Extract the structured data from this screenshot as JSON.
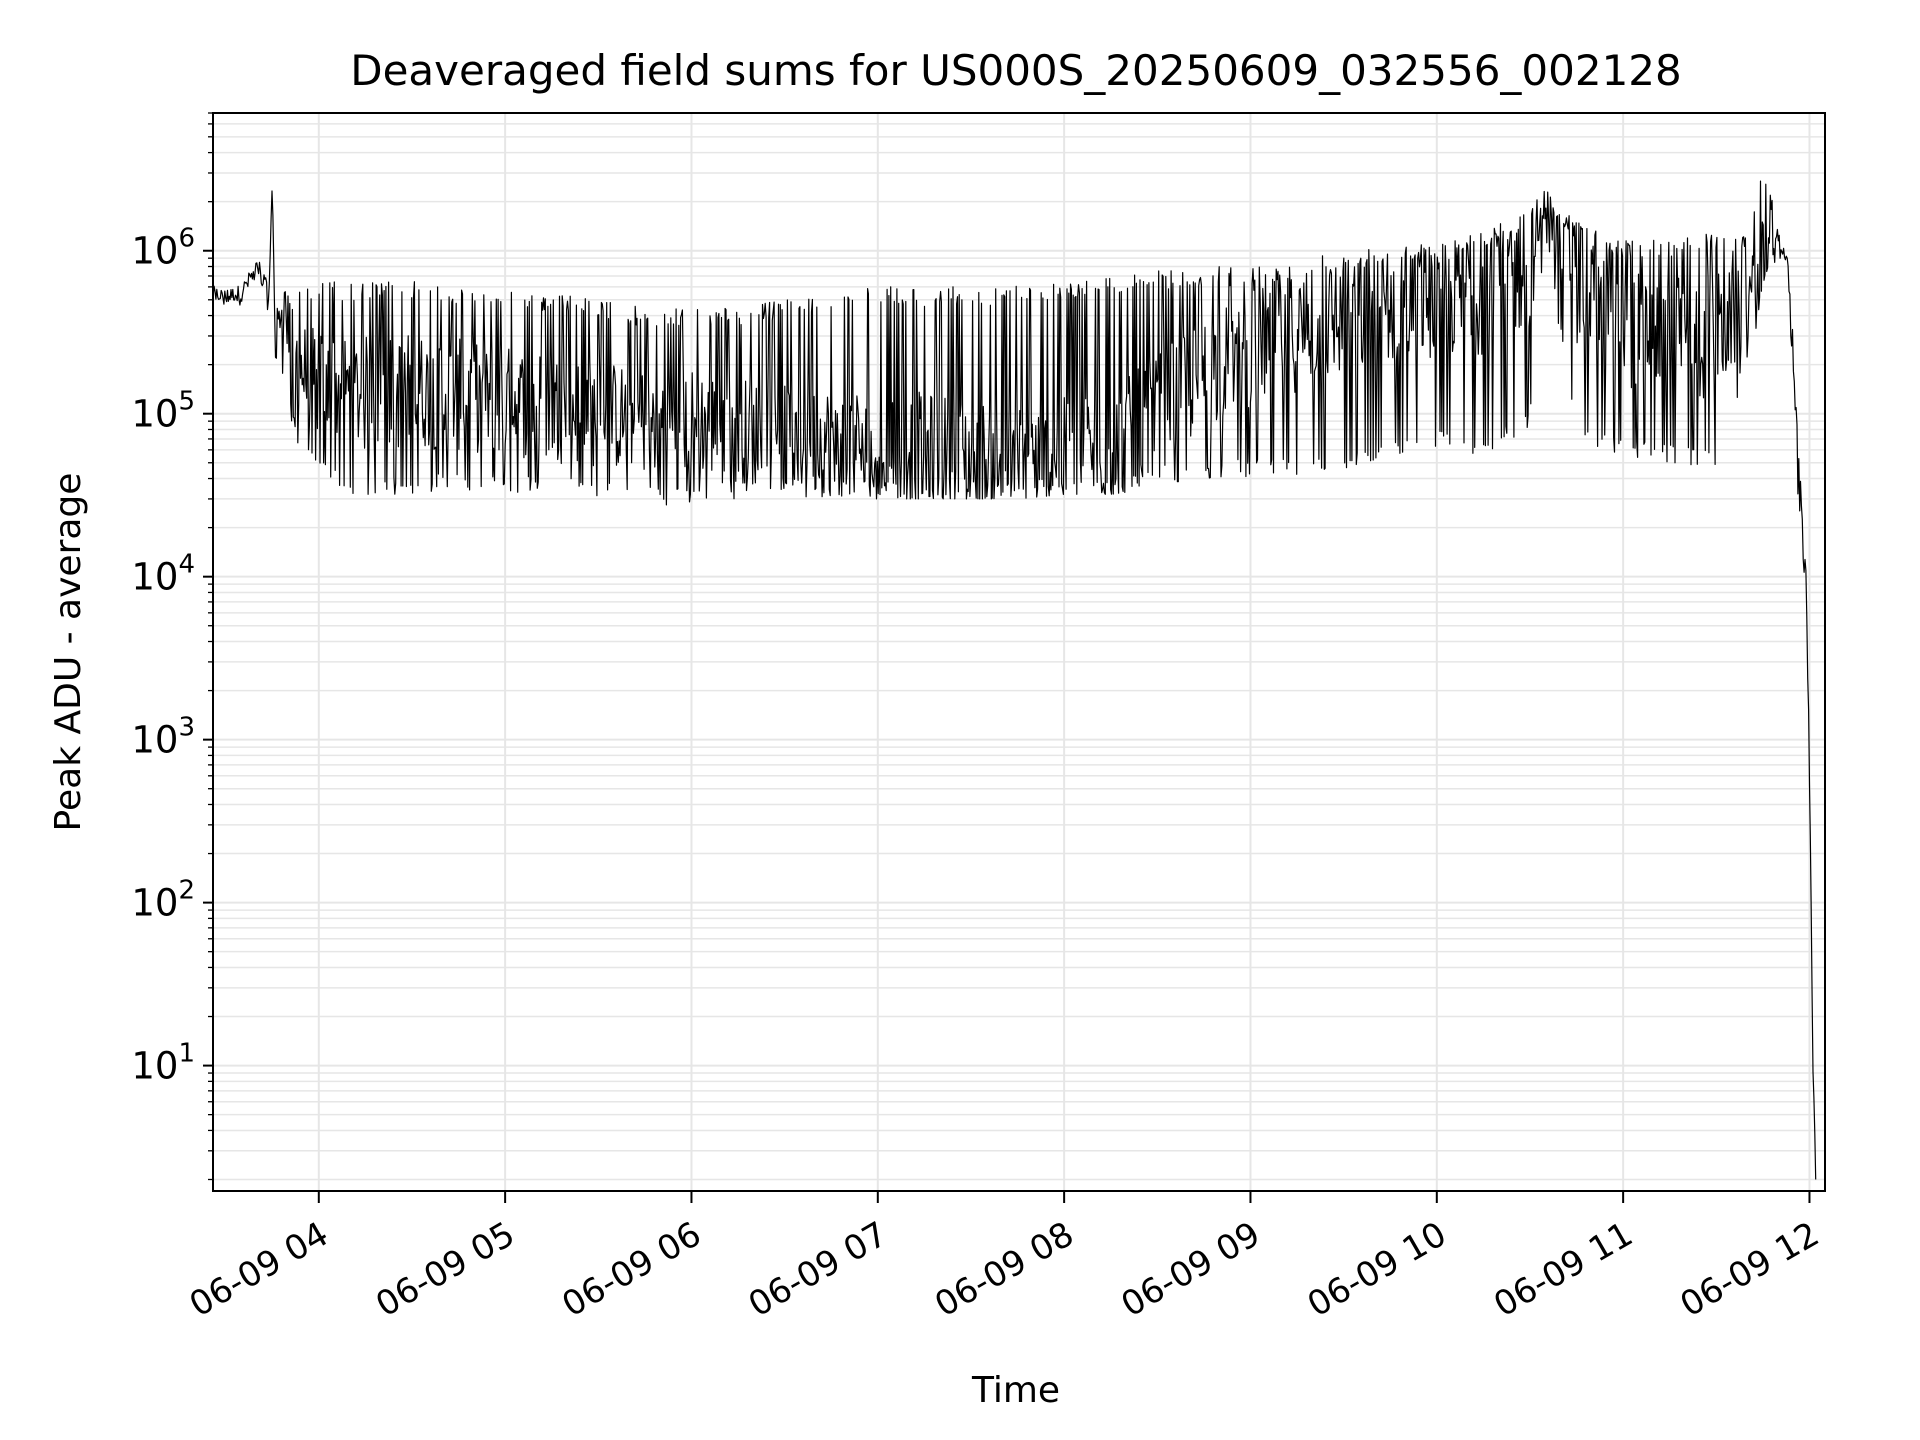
{
  "chart_data": {
    "type": "line",
    "title": "Deaveraged field sums for US000S_20250609_032556_002128",
    "xlabel": "Time",
    "ylabel": "Peak ADU - average",
    "yscale": "log",
    "ylim": [
      1.7,
      7000000
    ],
    "xlim": [
      "2025-06-09 03:25:56",
      "2025-06-09 12:05:00"
    ],
    "grid": true,
    "line_color": "#000000",
    "y_ticks": [
      {
        "base": "10",
        "exp": "1"
      },
      {
        "base": "10",
        "exp": "2"
      },
      {
        "base": "10",
        "exp": "3"
      },
      {
        "base": "10",
        "exp": "4"
      },
      {
        "base": "10",
        "exp": "5"
      },
      {
        "base": "10",
        "exp": "6"
      }
    ],
    "x_ticks": [
      "06-09 04",
      "06-09 05",
      "06-09 06",
      "06-09 07",
      "06-09 08",
      "06-09 09",
      "06-09 10",
      "06-09 11",
      "06-09 12"
    ],
    "x_tick_times": [
      "2025-06-09 04:00",
      "2025-06-09 05:00",
      "2025-06-09 06:00",
      "2025-06-09 07:00",
      "2025-06-09 08:00",
      "2025-06-09 09:00",
      "2025-06-09 10:00",
      "2025-06-09 11:00",
      "2025-06-09 12:00"
    ],
    "series": [
      {
        "x": [
          "2025-06-09 03:26",
          "2025-06-09 03:30",
          "2025-06-09 03:35",
          "2025-06-09 03:40",
          "2025-06-09 03:44",
          "2025-06-09 03:45",
          "2025-06-09 03:46",
          "2025-06-09 03:48",
          "2025-06-09 03:50",
          "2025-06-09 03:55",
          "2025-06-09 04:00",
          "2025-06-09 04:15",
          "2025-06-09 04:30",
          "2025-06-09 04:45",
          "2025-06-09 05:00",
          "2025-06-09 05:15",
          "2025-06-09 05:30",
          "2025-06-09 05:45",
          "2025-06-09 06:00",
          "2025-06-09 06:15",
          "2025-06-09 06:30",
          "2025-06-09 06:45",
          "2025-06-09 07:00",
          "2025-06-09 07:15",
          "2025-06-09 07:30",
          "2025-06-09 07:45",
          "2025-06-09 08:00",
          "2025-06-09 08:15",
          "2025-06-09 08:30",
          "2025-06-09 08:45",
          "2025-06-09 09:00",
          "2025-06-09 09:15",
          "2025-06-09 09:30",
          "2025-06-09 09:45",
          "2025-06-09 10:00",
          "2025-06-09 10:15",
          "2025-06-09 10:30",
          "2025-06-09 10:35",
          "2025-06-09 10:45",
          "2025-06-09 11:00",
          "2025-06-09 11:15",
          "2025-06-09 11:30",
          "2025-06-09 11:40",
          "2025-06-09 11:45",
          "2025-06-09 11:50",
          "2025-06-09 11:53",
          "2025-06-09 11:57",
          "2025-06-09 11:59",
          "2025-06-09 12:01",
          "2025-06-09 12:02"
        ],
        "base": [
          550000,
          520000,
          560000,
          750000,
          550000,
          2700000,
          300000,
          400000,
          300000,
          180000,
          150000,
          130000,
          140000,
          130000,
          120000,
          110000,
          100000,
          90000,
          90000,
          80000,
          70000,
          68000,
          65000,
          60000,
          55000,
          50000,
          55000,
          60000,
          100000,
          180000,
          250000,
          320000,
          380000,
          450000,
          500000,
          550000,
          800000,
          2000000,
          600000,
          350000,
          280000,
          300000,
          450000,
          900000,
          1200000,
          900000,
          30000,
          10000,
          20,
          2
        ],
        "low": [
          450000,
          420000,
          450000,
          550000,
          420000,
          2500000,
          200000,
          200000,
          100000,
          50000,
          40000,
          30000,
          32000,
          33000,
          33000,
          32000,
          30000,
          28000,
          27000,
          30000,
          30000,
          30000,
          30000,
          30000,
          30000,
          30000,
          32000,
          32000,
          35000,
          40000,
          40000,
          40000,
          45000,
          50000,
          60000,
          55000,
          80000,
          1200000,
          60000,
          55000,
          50000,
          45000,
          200000,
          500000,
          900000,
          700000,
          15000,
          8000,
          10,
          1.8
        ],
        "high": [
          650000,
          620000,
          650000,
          1000000,
          650000,
          2700000,
          500000,
          550000,
          600000,
          650000,
          650000,
          650000,
          650000,
          600000,
          580000,
          550000,
          500000,
          450000,
          450000,
          450000,
          500000,
          550000,
          600000,
          600000,
          600000,
          620000,
          650000,
          700000,
          750000,
          800000,
          800000,
          900000,
          1000000,
          1100000,
          1200000,
          1300000,
          1800000,
          2500000,
          1500000,
          1200000,
          1200000,
          1300000,
          1300000,
          3600000,
          1400000,
          1100000,
          50000,
          15000,
          30,
          2
        ]
      }
    ]
  }
}
